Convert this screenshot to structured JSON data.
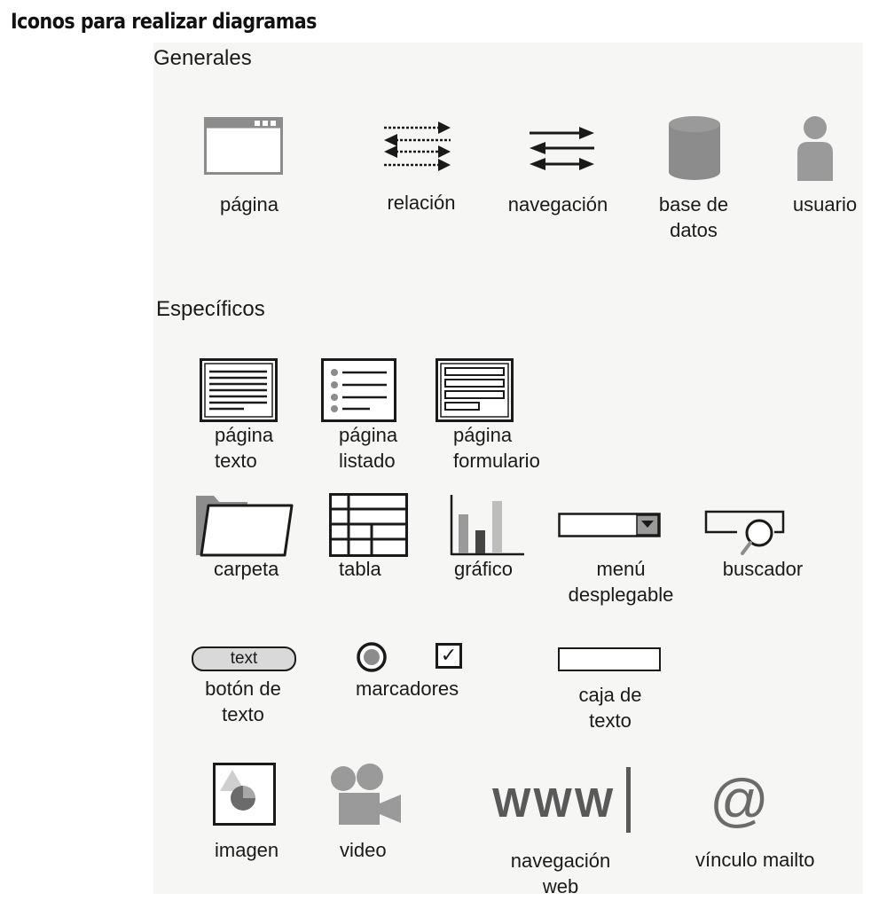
{
  "title": "Iconos para realizar diagramas",
  "sections": {
    "generales": "Generales",
    "especificos": "Específicos"
  },
  "generales": {
    "pagina": "página",
    "relacion": "relación",
    "navegacion": "navegación",
    "base_datos": [
      "base de",
      "datos"
    ],
    "usuario": "usuario"
  },
  "especificos": {
    "pagina_texto": [
      "página",
      "texto"
    ],
    "pagina_listado": [
      "página",
      "listado"
    ],
    "pagina_formulario": [
      "página",
      "formulario"
    ],
    "carpeta": "carpeta",
    "tabla": "tabla",
    "grafico": "gráfico",
    "menu": [
      "menú",
      "desplegable"
    ],
    "buscador": "buscador",
    "boton_texto": [
      "botón de",
      "texto"
    ],
    "boton_inner": "text",
    "marcadores": "marcadores",
    "checkmark": "✓",
    "caja_texto": [
      "caja de",
      "texto"
    ],
    "imagen": "imagen",
    "video": "video",
    "www_glyph": "WWW",
    "navegacion_web": [
      "navegación",
      "web"
    ],
    "at_glyph": "@",
    "vinculo_mailto": "vínculo mailto"
  },
  "colors": {
    "panel_bg": "#f6f6f4",
    "icon_gray": "#8c8c8c",
    "light_gray": "#bdbdbd",
    "dark_gray": "#555555",
    "ink": "#1a1a1a"
  },
  "icons": [
    "page-icon",
    "relation-icon",
    "navigation-icon",
    "database-icon",
    "user-icon",
    "text-page-icon",
    "list-page-icon",
    "form-page-icon",
    "folder-icon",
    "table-icon",
    "bar-chart-icon",
    "dropdown-menu-icon",
    "search-icon",
    "text-button-icon",
    "radio-icon",
    "checkbox-icon",
    "text-box-icon",
    "image-icon",
    "video-camera-icon",
    "www-icon",
    "at-sign-icon"
  ]
}
